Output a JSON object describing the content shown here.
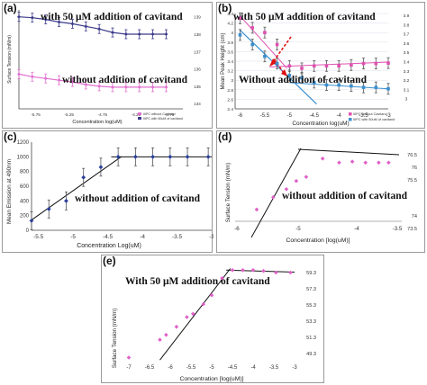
{
  "panels": {
    "a": {
      "label": "(a)",
      "annotation_top": "with 50 μM addition of cavitand",
      "annotation_bottom": "without addition of cavitand",
      "chart_data": {
        "type": "line",
        "xlabel": "Concentration log(uM)",
        "ylabel": "Surface Tension (mN/m)",
        "x_tick_labels": [
          "-5.75",
          "-5.25",
          "-4.75",
          "-4.25",
          "-3.75"
        ],
        "y_tick_labels": [
          "139",
          "138",
          "137",
          "136",
          "135",
          "134"
        ],
        "legend_position": "bottom-right",
        "series": [
          {
            "name": "IIIPC without Cavitand",
            "color": "#e070d0",
            "x": [
              -6.0,
              -5.8,
              -5.6,
              -5.4,
              -5.2,
              -5.0,
              -4.8,
              -4.6,
              -4.4,
              -4.2,
              -4.0,
              -3.8
            ],
            "y": [
              135.7,
              135.55,
              135.45,
              135.35,
              135.25,
              135.1,
              135.0,
              134.95,
              134.95,
              134.95,
              134.95,
              134.95
            ]
          },
          {
            "name": "IIIPC with 50uM of cavitand",
            "color": "#3a3a8a",
            "x": [
              -6.0,
              -5.8,
              -5.6,
              -5.4,
              -5.2,
              -5.0,
              -4.8,
              -4.6,
              -4.4,
              -4.2,
              -4.0,
              -3.8
            ],
            "y": [
              139.0,
              138.95,
              138.85,
              138.7,
              138.6,
              138.45,
              138.3,
              138.1,
              138.0,
              138.0,
              138.0,
              138.0
            ]
          }
        ]
      }
    },
    "b": {
      "label": "(b)",
      "annotation_top": "with 50 μM addition of cavitand",
      "annotation_bottom": "Without addition of cavitand",
      "chart_data": {
        "type": "scatter",
        "xlabel": "Concentration  log(uM)",
        "ylabel": "Mean Peak Height (cm)",
        "x_tick_labels": [
          "-6",
          "-5.5",
          "-5",
          "-4.5",
          "-4",
          "-3.5",
          "-3"
        ],
        "y_tick_labels": [
          "4.4",
          "4.2",
          "4",
          "3.8",
          "3.6",
          "3.4",
          "3.2",
          "3",
          "2.8",
          "2.6",
          "2.4"
        ],
        "right_tick_labels": [
          "3.9",
          "3.8",
          "3.7",
          "3.6",
          "3.5",
          "3.4",
          "3.3",
          "3.2",
          "3.1",
          "3"
        ],
        "legend_position": "bottom-right",
        "series": [
          {
            "name": "IIIPC without Cavitand",
            "color": "#e050b0",
            "x": [
              -6.0,
              -5.75,
              -5.5,
              -5.25,
              -5.0,
              -4.75,
              -4.5,
              -4.25,
              -4.0,
              -3.75,
              -3.5,
              -3.25,
              -3.0
            ],
            "y": [
              4.3,
              4.1,
              4.0,
              3.75,
              3.3,
              3.25,
              3.3,
              3.3,
              3.3,
              3.32,
              3.35,
              3.35,
              3.36
            ]
          },
          {
            "name": "IIIPC with 50uM of cavitand",
            "color": "#3a8fd0",
            "x": [
              -6.0,
              -5.75,
              -5.5,
              -5.25,
              -5.0,
              -4.75,
              -4.5,
              -4.25,
              -4.0,
              -3.75,
              -3.5,
              -3.25,
              -3.0
            ],
            "y": [
              3.95,
              3.75,
              3.5,
              3.35,
              3.1,
              3.05,
              2.95,
              2.9,
              2.9,
              2.88,
              2.85,
              2.85,
              2.82
            ]
          }
        ]
      }
    },
    "c": {
      "label": "(c)",
      "annotation": "without addition of cavitand",
      "chart_data": {
        "type": "line",
        "xlabel": "Concentration Log(uM)",
        "ylabel": "Mean Emission at 490nm",
        "x_tick_labels": [
          "-5.5",
          "-5",
          "-4.5",
          "-4",
          "-3.5",
          "-3"
        ],
        "y_tick_labels": [
          "1200",
          "1000",
          "800",
          "600",
          "400",
          "200",
          "0"
        ],
        "series": [
          {
            "name": "",
            "color": "#2a3f9a",
            "x": [
              -5.6,
              -5.35,
              -5.1,
              -4.85,
              -4.6,
              -4.35,
              -4.1,
              -3.85,
              -3.6,
              -3.35,
              -3.05
            ],
            "y": [
              130,
              290,
              400,
              720,
              860,
              1000,
              1000,
              1000,
              1000,
              1000,
              1000
            ]
          }
        ]
      }
    },
    "d": {
      "label": "(d)",
      "annotation": "without addition of cavitand",
      "chart_data": {
        "type": "scatter",
        "xlabel": "Concentration  [log(uM)]",
        "ylabel": "Surface Tension (mN/m)",
        "x_tick_labels": [
          "-6",
          "-5",
          "-4",
          "-3.5"
        ],
        "y_tick_labels": [
          "76.5",
          "76",
          "75.5",
          "74",
          "73.5"
        ],
        "series": [
          {
            "name": "",
            "color": "#e060c8",
            "x": [
              -5.7,
              -5.45,
              -5.25,
              -5.1,
              -4.95,
              -4.7,
              -4.45,
              -4.25,
              -4.05,
              -3.85,
              -3.7
            ],
            "y": [
              73.9,
              74.5,
              74.9,
              75.3,
              75.5,
              76.4,
              76.2,
              76.25,
              76.2,
              76.2,
              76.2
            ]
          }
        ]
      }
    },
    "e": {
      "label": "(e)",
      "annotation": "With 50 μM addition of cavitand",
      "chart_data": {
        "type": "scatter",
        "xlabel": "Concentration [log(uM)]",
        "ylabel": "Surface Tension (mN/m)",
        "x_tick_labels": [
          "-7",
          "-6.5",
          "-6",
          "-5.5",
          "-5",
          "-4.5",
          "-4",
          "-3.5",
          "-3"
        ],
        "y_tick_labels": [
          "59.3",
          "57.3",
          "55.3",
          "53.3",
          "51.3",
          "49.3"
        ],
        "series": [
          {
            "name": "",
            "color": "#e060c8",
            "x": [
              -7.0,
              -6.25,
              -6.1,
              -5.85,
              -5.6,
              -5.45,
              -5.2,
              -5.0,
              -4.75,
              -4.5,
              -4.25,
              -4.0,
              -3.75,
              -3.45,
              -3.1
            ],
            "y": [
              48.8,
              51.0,
              51.6,
              52.6,
              53.8,
              54.2,
              55.4,
              56.5,
              58.6,
              59.6,
              59.6,
              59.6,
              59.5,
              59.3,
              59.3
            ]
          }
        ]
      }
    }
  }
}
